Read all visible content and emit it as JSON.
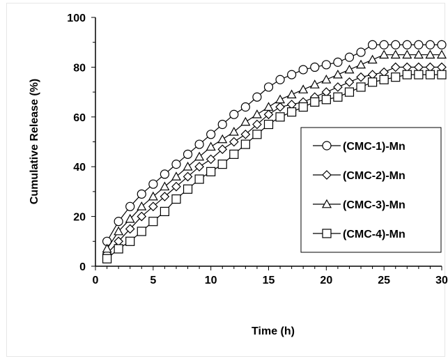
{
  "chart_data": {
    "type": "line",
    "title": "",
    "xlabel": "Time (h)",
    "ylabel": "Cumulative Release (%)",
    "xlim": [
      0,
      30
    ],
    "ylim": [
      0,
      100
    ],
    "x_ticks": [
      0,
      5,
      10,
      15,
      20,
      25,
      30
    ],
    "y_ticks": [
      0,
      20,
      40,
      60,
      80,
      100
    ],
    "x_tick_labels": [
      "0",
      "5",
      "10",
      "15",
      "20",
      "25",
      "30"
    ],
    "y_tick_labels": [
      "0",
      "20",
      "40",
      "60",
      "80",
      "100"
    ],
    "grid": false,
    "legend_position": "right",
    "x": [
      1,
      2,
      3,
      4,
      5,
      6,
      7,
      8,
      9,
      10,
      11,
      12,
      13,
      14,
      15,
      16,
      17,
      18,
      19,
      20,
      21,
      22,
      23,
      24,
      25,
      26,
      27,
      28,
      29,
      30
    ],
    "series": [
      {
        "name": "(CMC-1)-Mn",
        "marker": "circle",
        "color": "#000000",
        "values": [
          10,
          18,
          24,
          29,
          33,
          37,
          41,
          45,
          49,
          53,
          57,
          61,
          64,
          68,
          72,
          75,
          77,
          79,
          80,
          81,
          82,
          84,
          86,
          89,
          89,
          89,
          89,
          89,
          89,
          89
        ]
      },
      {
        "name": "(CMC-2)-Mn",
        "marker": "diamond",
        "color": "#000000",
        "values": [
          5,
          10,
          15,
          20,
          24,
          28,
          32,
          36,
          40,
          43,
          47,
          50,
          53,
          57,
          61,
          64,
          65,
          66,
          68,
          70,
          72,
          74,
          76,
          77,
          78,
          80,
          80,
          80,
          80,
          80
        ]
      },
      {
        "name": "(CMC-3)-Mn",
        "marker": "triangle",
        "color": "#000000",
        "values": [
          7,
          14,
          19,
          24,
          28,
          32,
          36,
          40,
          44,
          48,
          51,
          54,
          58,
          61,
          64,
          67,
          69,
          71,
          73,
          75,
          77,
          79,
          81,
          83,
          85,
          85,
          85,
          85,
          85,
          85
        ]
      },
      {
        "name": "(CMC-4)-Mn",
        "marker": "square",
        "color": "#000000",
        "values": [
          3,
          7,
          10,
          14,
          18,
          22,
          27,
          31,
          35,
          38,
          41,
          45,
          49,
          53,
          57,
          60,
          62,
          64,
          66,
          67,
          68,
          70,
          72,
          74,
          75,
          76,
          77,
          77,
          77,
          77
        ]
      }
    ]
  }
}
